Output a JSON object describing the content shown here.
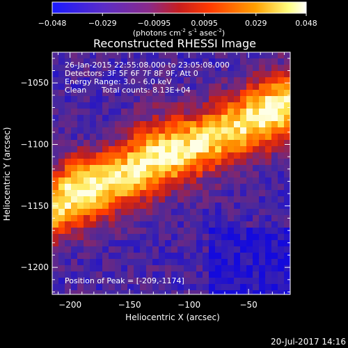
{
  "chart_data": {
    "type": "heatmap",
    "title": "Reconstructed RHESSI Image",
    "xlabel": "Heliocentric X (arcsec)",
    "ylabel": "Heliocentric Y (arcsec)",
    "xlim": [
      -215,
      -15
    ],
    "ylim": [
      -1222,
      -1025
    ],
    "xticks": [
      -200,
      -150,
      -100,
      -50
    ],
    "yticks": [
      -1050,
      -1100,
      -1150,
      -1200
    ],
    "colorbar": {
      "range": [
        -0.048,
        0.048
      ],
      "tick_values": [
        -0.048,
        -0.029,
        -0.0095,
        0.0095,
        0.029,
        0.048
      ],
      "tick_labels": [
        "-0.048",
        "-0.029",
        "-0.0095",
        "0.0095",
        "0.029",
        "0.048"
      ],
      "unit_line1": "(photons cm",
      "unit_exp1": "-2",
      "unit_mid": " s",
      "unit_exp2": "-1",
      "unit_mid2": " asec",
      "unit_exp3": "-2",
      "unit_end": ")"
    },
    "peak": {
      "x": -209,
      "y": -1174
    },
    "annotations": [
      "26-Jan-2015 22:55:08.000 to 23:05:08.000",
      "Detectors: 3F 5F 6F 7F 8F 9F, Att 0",
      "Energy Range: 3.0 - 6.0 keV",
      "Clean",
      "Total counts: 8.13E+04"
    ],
    "peak_label": "Position of Peak = [-209,-1174]",
    "colors": {
      "background": "#000000",
      "axes": "#ffffff",
      "colormap": [
        "#0000ff",
        "#7733aa",
        "#aa2233",
        "#ff3300",
        "#ff9900",
        "#ffff99",
        "#ffffff"
      ]
    }
  },
  "footer": {
    "timestamp": "20-Jul-2017 14:16"
  }
}
